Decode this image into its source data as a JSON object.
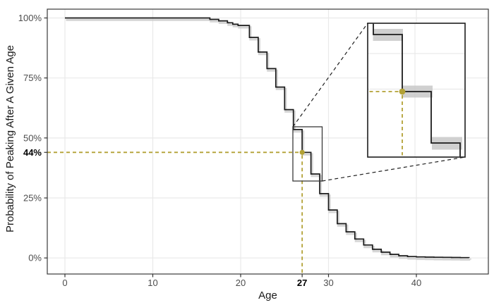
{
  "figure": {
    "kind": "statistical step chart (survival curve) with magnifier inset",
    "background": "#ffffff"
  },
  "colors": {
    "curve": "#1b1b1b",
    "grid": "#e9e9e9",
    "panel_border": "#3a3a3a",
    "tick_text": "#4d4d4d",
    "bold_text": "#000000",
    "highlight": "#b2a135",
    "band": "#c8c8c8",
    "connector": "#1f1f1f"
  },
  "chart_data": {
    "type": "line",
    "step": true,
    "title": "",
    "xlabel": "Age",
    "ylabel": "Probability of Peaking After A Given Age",
    "xlim": [
      -2,
      48.2
    ],
    "ylim": [
      0,
      100
    ],
    "grid": "major gridlines light gray on white, dark panel border, ticks outside",
    "legend": null,
    "x_ticks": [
      {
        "label": "0",
        "value": 0,
        "bold": false
      },
      {
        "label": "10",
        "value": 10,
        "bold": false
      },
      {
        "label": "20",
        "value": 20,
        "bold": false
      },
      {
        "label": "27",
        "value": 27,
        "bold": true
      },
      {
        "label": "30",
        "value": 30,
        "bold": false
      },
      {
        "label": "40",
        "value": 40,
        "bold": false
      }
    ],
    "y_ticks": [
      {
        "label": "100%",
        "value": 100,
        "bold": false
      },
      {
        "label": "75%",
        "value": 75,
        "bold": false
      },
      {
        "label": "50%",
        "value": 50,
        "bold": false
      },
      {
        "label": "44%",
        "value": 44,
        "bold": true
      },
      {
        "label": "25%",
        "value": 25,
        "bold": false
      },
      {
        "label": "0%",
        "value": 0,
        "bold": false
      }
    ],
    "curve_start_age": 0,
    "baseline_probability": 100,
    "curve_end_age": 46,
    "steps": [
      [
        16.5,
        99.4
      ],
      [
        17.5,
        98.8
      ],
      [
        18.5,
        98.0
      ],
      [
        19.1,
        97.4
      ],
      [
        19.7,
        96.9
      ],
      [
        21,
        91.9
      ],
      [
        22,
        85.8
      ],
      [
        23,
        78.9
      ],
      [
        24,
        71.2
      ],
      [
        25,
        61.8
      ],
      [
        26,
        53.5
      ],
      [
        27,
        44.0
      ],
      [
        28,
        35.0
      ],
      [
        29,
        26.8
      ],
      [
        30,
        20.0
      ],
      [
        31,
        14.3
      ],
      [
        32,
        10.9
      ],
      [
        33,
        7.9
      ],
      [
        34,
        5.4
      ],
      [
        35,
        3.6
      ],
      [
        36,
        2.4
      ],
      [
        37,
        1.5
      ],
      [
        38,
        0.9
      ],
      [
        39,
        0.6
      ],
      [
        40,
        0.45
      ],
      [
        41,
        0.35
      ],
      [
        42,
        0.3
      ],
      [
        43,
        0.25
      ],
      [
        44,
        0.2
      ],
      [
        45,
        0.15
      ],
      [
        46,
        0.1
      ]
    ],
    "highlight": {
      "age": 27,
      "probability": 44,
      "x_label": "27",
      "y_label": "44%",
      "marker": "filled circle",
      "style": "dashed olive crosshair from both axes to point"
    },
    "confidence_band": {
      "color": "#c8c8c8",
      "approx_halfwidth_pct": 1
    },
    "inset": {
      "description": "zoom inset magnifying the steps around ages 26-29, linked to source box by dashed lines",
      "window_age": [
        25.8,
        29.2
      ],
      "window_probability": [
        33,
        55.5
      ],
      "visible_steps": [
        {
          "age": 26,
          "probability": 53.5
        },
        {
          "age": 27,
          "probability": 44.0
        },
        {
          "age": 28,
          "probability": 35.0
        },
        {
          "age": 29,
          "probability": 26.8
        }
      ],
      "highlight_age": 27,
      "bands": "gray confidence band around each horizontal step segment"
    }
  }
}
